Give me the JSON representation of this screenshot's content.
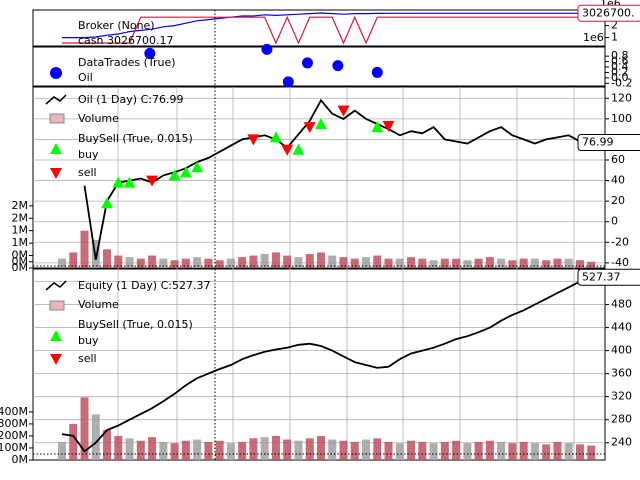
{
  "chart_data": [
    {
      "type": "line",
      "title": "Broker (None)",
      "series": [
        {
          "name": "cash 3026700.17",
          "color": "#0000ff",
          "values": [
            1.0,
            1.0,
            1.0,
            1.05,
            1.2,
            1.3,
            1.5,
            1.6,
            1.7,
            1.9,
            2.0,
            2.2,
            2.4,
            2.5,
            2.6,
            2.7,
            2.8,
            2.8,
            2.9,
            2.85,
            2.9,
            2.95,
            3.0,
            3.05,
            3.0,
            2.95,
            3.0,
            3.0,
            3.02,
            3.0267,
            3.0267,
            3.0267,
            3.0267,
            3.0267,
            3.0267,
            3.0267,
            3.0267,
            3.0267,
            3.0267,
            3.0267,
            3.0267,
            3.0267,
            3.0267,
            3.0267,
            3.0267,
            3.0267,
            3.0267,
            3.0267
          ]
        },
        {
          "color": "#dc143c",
          "values": [
            0.55,
            0.55,
            0.55,
            0.55,
            0.55,
            0.55,
            0.55,
            2.7,
            2.7,
            2.7,
            2.7,
            2.7,
            2.7,
            2.7,
            2.7,
            2.7,
            2.7,
            2.7,
            2.7,
            0.55,
            2.7,
            0.55,
            2.7,
            2.7,
            2.7,
            0.55,
            2.7,
            0.55,
            2.7,
            2.7,
            2.7,
            2.7,
            2.7,
            2.7,
            2.7,
            2.7,
            2.7,
            2.7,
            2.7,
            2.7,
            2.7,
            2.7,
            2.7,
            2.7,
            2.7,
            2.7,
            2.7,
            2.7
          ]
        }
      ],
      "ylim": [
        0.3,
        3.3
      ],
      "yticks": [
        1,
        2
      ],
      "offset_labels": [
        "1e6",
        "1e6"
      ],
      "last_label": {
        "value": 3.0267,
        "label": "3026700."
      }
    },
    {
      "type": "scatter",
      "title": "DataTrades (True)",
      "subtitle": "Oil",
      "series": [
        {
          "color": "#0000ff",
          "x": [
            7.8,
            18.2,
            20.1,
            21.8,
            24.5,
            28
          ],
          "values": [
            0.9,
            1.05,
            -0.15,
            0.55,
            0.45,
            0.2
          ]
        }
      ],
      "ylim": [
        -0.3,
        1.1
      ],
      "yticks": [
        -0.2,
        {
          "value": 0,
          "label": "0.0"
        },
        0.2,
        0.4,
        0.6,
        0.8
      ]
    },
    {
      "type": "ohlc",
      "title": "Oil (1 Day) C:76.99",
      "series": [
        {
          "color": "#000000",
          "values": [
            null,
            null,
            35,
            -37,
            20,
            38,
            40,
            42,
            38,
            45,
            48,
            52,
            58,
            62,
            68,
            74,
            80,
            82,
            84,
            80,
            72,
            85,
            98,
            118,
            105,
            100,
            108,
            100,
            95,
            90,
            84,
            88,
            86,
            92,
            80,
            78,
            76,
            82,
            88,
            92,
            84,
            80,
            76,
            80,
            82,
            84,
            78,
            76.99
          ]
        }
      ],
      "ylim": [
        -45,
        130
      ],
      "yticks": [
        -40,
        -20,
        0,
        20,
        40,
        60,
        80,
        100,
        120
      ],
      "last_label": {
        "value": 76.99,
        "label": "76.99"
      },
      "volume": {
        "name": "Volume",
        "color": "#c0505f",
        "values": [
          0.3,
          0.5,
          1.2,
          0.9,
          0.6,
          0.4,
          0.35,
          0.3,
          0.4,
          0.3,
          0.25,
          0.3,
          0.35,
          0.3,
          0.25,
          0.3,
          0.35,
          0.4,
          0.45,
          0.5,
          0.4,
          0.35,
          0.45,
          0.5,
          0.4,
          0.35,
          0.3,
          0.35,
          0.4,
          0.3,
          0.3,
          0.35,
          0.3,
          0.25,
          0.3,
          0.3,
          0.25,
          0.3,
          0.35,
          0.3,
          0.25,
          0.3,
          0.3,
          0.25,
          0.3,
          0.3,
          0.25,
          0.2
        ],
        "ylim": [
          0,
          2.2
        ],
        "yticks": [
          {
            "value": 0,
            "label": "0M"
          },
          {
            "value": 0.2,
            "label": "0M"
          },
          {
            "value": 0.4,
            "label": "0M"
          },
          {
            "value": 0.8,
            "label": "1M"
          },
          {
            "value": 1.2,
            "label": "1M"
          },
          {
            "value": 1.6,
            "label": "2M"
          },
          {
            "value": 2.0,
            "label": "2M"
          }
        ]
      },
      "markers": {
        "title": "BuySell (True, 0.015)",
        "buy": {
          "name": "buy",
          "color": "#00ff00",
          "x": [
            4,
            5,
            6,
            10,
            11,
            12,
            19,
            21,
            23,
            28
          ],
          "values": [
            18,
            38,
            38,
            45,
            48,
            53,
            82,
            70,
            95,
            92
          ]
        },
        "sell": {
          "name": "sell",
          "color": "#ff0000",
          "x": [
            8,
            17,
            20,
            22,
            25,
            29
          ],
          "values": [
            40,
            80,
            70,
            92,
            108,
            93
          ]
        }
      }
    },
    {
      "type": "ohlc",
      "title": "Equity (1 Day) C:527.37",
      "series": [
        {
          "color": "#000000",
          "values": [
            255,
            252,
            225,
            240,
            262,
            270,
            280,
            290,
            300,
            312,
            325,
            340,
            352,
            360,
            368,
            375,
            385,
            392,
            398,
            402,
            405,
            410,
            412,
            408,
            400,
            390,
            380,
            375,
            370,
            372,
            385,
            395,
            400,
            405,
            412,
            420,
            425,
            432,
            440,
            452,
            462,
            470,
            480,
            490,
            500,
            510,
            520,
            527.37
          ]
        }
      ],
      "ylim": [
        210,
        540
      ],
      "yticks": [
        240,
        280,
        320,
        360,
        400,
        440,
        480,
        520
      ],
      "last_label": {
        "value": 527.37,
        "label": "527.37"
      },
      "volume": {
        "name": "Volume",
        "color": "#c0505f",
        "values": [
          150,
          300,
          520,
          380,
          250,
          200,
          180,
          160,
          190,
          150,
          140,
          160,
          170,
          150,
          160,
          140,
          150,
          180,
          190,
          200,
          170,
          160,
          180,
          200,
          170,
          160,
          150,
          170,
          180,
          150,
          140,
          160,
          150,
          140,
          150,
          160,
          140,
          150,
          160,
          150,
          140,
          150,
          140,
          130,
          150,
          140,
          130,
          120
        ],
        "ylim": [
          0,
          600
        ],
        "yticks": [
          {
            "value": 0,
            "label": "0M"
          },
          {
            "value": 100,
            "label": "100M"
          },
          {
            "value": 200,
            "label": "200M"
          },
          {
            "value": 300,
            "label": "300M"
          },
          {
            "value": 400,
            "label": "400M"
          }
        ]
      },
      "markers": {
        "title": "BuySell (True, 0.015)",
        "buy": {
          "name": "buy",
          "color": "#00ff00",
          "x": [],
          "values": []
        },
        "sell": {
          "name": "sell",
          "color": "#ff0000",
          "x": [],
          "values": []
        }
      }
    }
  ]
}
